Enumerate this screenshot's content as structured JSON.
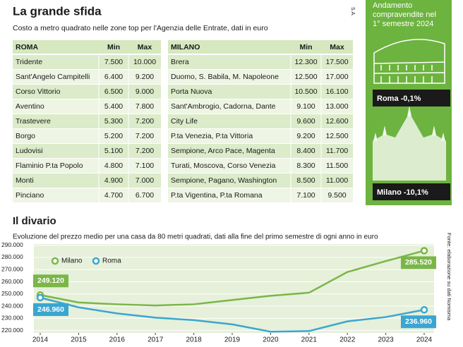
{
  "header": {
    "title": "La grande sfida",
    "subtitle": "Costo a metro quadrato nelle zone top per l'Agenzia delle Entrate, dati in euro",
    "source_tag": "S.A."
  },
  "tables": [
    {
      "columns": [
        "ROMA",
        "Min",
        "Max"
      ],
      "rows": [
        [
          "Tridente",
          "7.500",
          "10.000"
        ],
        [
          "Sant'Angelo Campitelli",
          "6.400",
          "9.200"
        ],
        [
          "Corso Vittorio",
          "6.500",
          "9.000"
        ],
        [
          "Aventino",
          "5.400",
          "7.800"
        ],
        [
          "Trastevere",
          "5.300",
          "7.200"
        ],
        [
          "Borgo",
          "5.200",
          "7.200"
        ],
        [
          "Ludovisi",
          "5.100",
          "7.200"
        ],
        [
          "Flaminio P.ta Popolo",
          "4.800",
          "7.100"
        ],
        [
          "Monti",
          "4.900",
          "7.000"
        ],
        [
          "Pinciano",
          "4.700",
          "6.700"
        ]
      ]
    },
    {
      "columns": [
        "MILANO",
        "Min",
        "Max"
      ],
      "rows": [
        [
          "Brera",
          "12.300",
          "17.500"
        ],
        [
          "Duomo, S. Babila, M. Napoleone",
          "12.500",
          "17.000"
        ],
        [
          "Porta Nuova",
          "10.500",
          "16.100"
        ],
        [
          "Sant'Ambrogio, Cadorna, Dante",
          "9.100",
          "13.000"
        ],
        [
          "City Life",
          "9.600",
          "12.600"
        ],
        [
          "P.ta Venezia, P.ta Vittoria",
          "9.200",
          "12.500"
        ],
        [
          "Sempione, Arco Pace, Magenta",
          "8.400",
          "11.700"
        ],
        [
          "Turati, Moscova, Corso Venezia",
          "8.300",
          "11.500"
        ],
        [
          "Sempione, Pagano, Washington",
          "8.500",
          "11.000"
        ],
        [
          "P.ta Vigentina, P.ta Romana",
          "7.100",
          "9.500"
        ]
      ]
    }
  ],
  "panel": {
    "title": [
      "Andamento",
      "compravendite nel",
      "1° semestre 2024"
    ],
    "items": [
      "Roma -0,1%",
      "Milano -10,1%"
    ]
  },
  "chart_data": {
    "type": "line",
    "title": "Il divario",
    "subtitle": "Evoluzione del prezzo medio per una casa da 80 metri quadrati, dati alla fine del primo semestre di ogni anno in euro",
    "source": "Fonte: elaborazione su dati Nomisma",
    "categories": [
      "2014",
      "2015",
      "2016",
      "2017",
      "2018",
      "2019",
      "2020",
      "2021",
      "2022",
      "2023",
      "2024"
    ],
    "series": [
      {
        "name": "Milano",
        "color": "#7ab648",
        "values": [
          249120,
          243000,
          241500,
          240500,
          241500,
          245000,
          248500,
          251000,
          268000,
          277000,
          285520
        ],
        "value_labels": [
          "249.120",
          null,
          null,
          null,
          null,
          null,
          null,
          null,
          null,
          null,
          "285.520"
        ]
      },
      {
        "name": "Roma",
        "color": "#3aa6d0",
        "values": [
          246960,
          239000,
          234000,
          230500,
          228500,
          225000,
          219000,
          219500,
          227500,
          231000,
          236960
        ],
        "value_labels": [
          "246.960",
          null,
          null,
          null,
          null,
          null,
          null,
          null,
          null,
          null,
          "236.960"
        ]
      }
    ],
    "ylim": [
      218000,
      291000
    ],
    "yticks": [
      {
        "value": 220000,
        "label": "220.000"
      },
      {
        "value": 230000,
        "label": "230.000"
      },
      {
        "value": 240000,
        "label": "240.000"
      },
      {
        "value": 250000,
        "label": "250.000"
      },
      {
        "value": 260000,
        "label": "260.000"
      },
      {
        "value": 270000,
        "label": "270.000"
      },
      {
        "value": 280000,
        "label": "280.000"
      },
      {
        "value": 290000,
        "label": "290.000"
      }
    ],
    "grid": true,
    "legend": "top-left"
  }
}
